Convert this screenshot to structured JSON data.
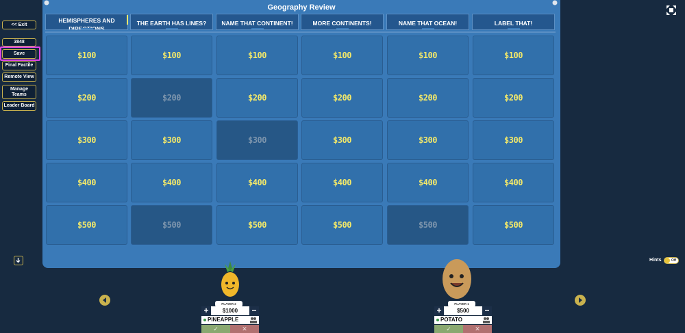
{
  "board": {
    "title": "Geography Review"
  },
  "sidebar": {
    "exit_label": "<< Exit",
    "code": "3848",
    "save_label": "Save",
    "final_label": "Final Factile",
    "remote_label": "Remote View",
    "manage_label": "Manage Teams",
    "leader_label": "Leader Board"
  },
  "categories": [
    "HEMISPHERES AND DIRECTIONS",
    "THE EARTH HAS LINES?",
    "NAME THAT CONTINENT!",
    "MORE CONTINENTS!",
    "NAME THAT OCEAN!",
    "LABEL THAT!"
  ],
  "tiles": [
    [
      "$100",
      "$100",
      "$100",
      "$100",
      "$100",
      "$100"
    ],
    [
      "$200",
      "$200",
      "$200",
      "$200",
      "$200",
      "$200"
    ],
    [
      "$300",
      "$300",
      "$300",
      "$300",
      "$300",
      "$300"
    ],
    [
      "$400",
      "$400",
      "$400",
      "$400",
      "$400",
      "$400"
    ],
    [
      "$500",
      "$500",
      "$500",
      "$500",
      "$500",
      "$500"
    ]
  ],
  "hints": {
    "label": "Hints",
    "toggle": "Off"
  },
  "players": [
    {
      "tag": "PLAYER 2",
      "score": "$1000",
      "name": "PINEAPPLE"
    },
    {
      "tag": "PLAYER 1",
      "score": "$500",
      "name": "POTATO"
    }
  ],
  "colors": {
    "accent": "#c9b24e",
    "tile": "#3170ab",
    "tile_used": "#265786",
    "value": "#f2e86a",
    "highlight": "#e045e8"
  }
}
